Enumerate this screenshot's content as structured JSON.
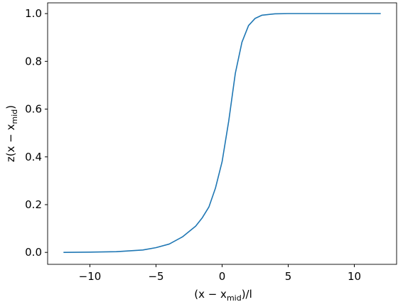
{
  "chart_data": {
    "type": "line",
    "xlabel": [
      "(x − x",
      "mid",
      ")/l"
    ],
    "ylabel": [
      "z(x − x",
      "mid",
      ")"
    ],
    "x": [
      -12,
      -10,
      -8,
      -6,
      -5,
      -4,
      -3,
      -2,
      -1.5,
      -1,
      -0.5,
      0,
      0.5,
      1,
      1.5,
      2,
      2.5,
      3,
      4,
      5,
      8,
      12
    ],
    "series": [
      {
        "color": "#1f77b4",
        "values": [
          0.0,
          0.001,
          0.003,
          0.01,
          0.02,
          0.035,
          0.065,
          0.11,
          0.145,
          0.19,
          0.27,
          0.38,
          0.55,
          0.75,
          0.88,
          0.95,
          0.98,
          0.993,
          0.999,
          1.0,
          1.0,
          1.0
        ]
      }
    ],
    "xlim": [
      -13.2,
      13.2
    ],
    "ylim": [
      -0.05,
      1.045
    ],
    "xticks": [
      {
        "value": -10,
        "label": "−10"
      },
      {
        "value": -5,
        "label": "−5"
      },
      0,
      5,
      10
    ],
    "yticks": [
      {
        "value": 0,
        "label": "0.0"
      },
      {
        "value": 0.2,
        "label": "0.2"
      },
      {
        "value": 0.4,
        "label": "0.4"
      },
      {
        "value": 0.6,
        "label": "0.6"
      },
      {
        "value": 0.8,
        "label": "0.8"
      },
      {
        "value": 1,
        "label": "1.0"
      }
    ]
  }
}
